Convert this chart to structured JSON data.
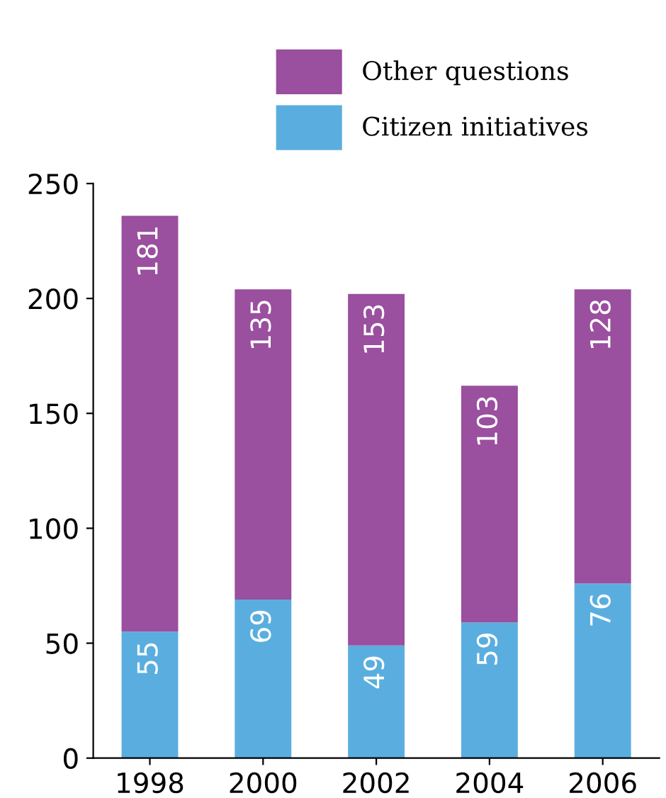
{
  "chart_data": {
    "type": "bar",
    "stacked": true,
    "categories": [
      "1998",
      "2000",
      "2002",
      "2004",
      "2006"
    ],
    "series": [
      {
        "name": "Citizen initiatives",
        "color": "#5aaedf",
        "values": [
          55,
          69,
          49,
          59,
          76
        ]
      },
      {
        "name": "Other questions",
        "color": "#9a4f9f",
        "values": [
          181,
          135,
          153,
          103,
          128
        ]
      }
    ],
    "ylim": [
      0,
      250
    ],
    "yticks": [
      0,
      50,
      100,
      150,
      200,
      250
    ],
    "grid": false,
    "legend": "top",
    "data_labels": true
  }
}
